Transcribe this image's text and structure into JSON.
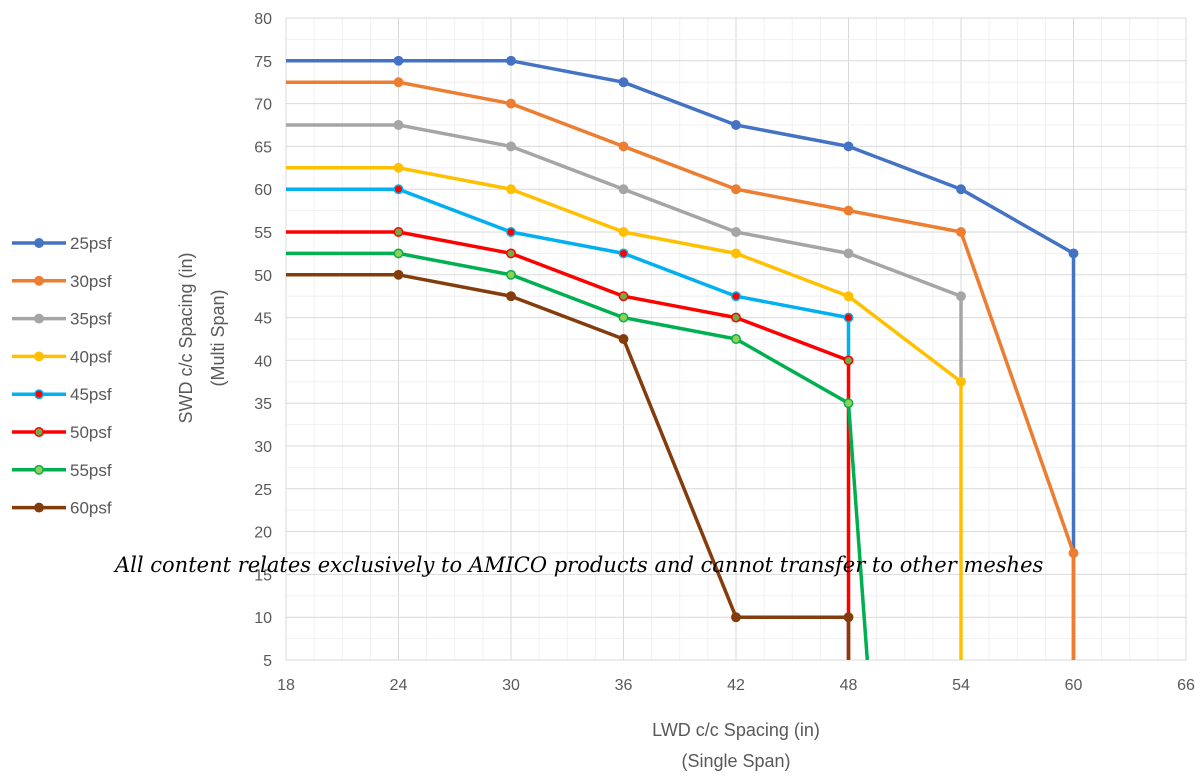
{
  "chart_data": {
    "type": "line",
    "title": "",
    "xlabel": [
      "LWD c/c Spacing (in)",
      "(Single Span)"
    ],
    "ylabel": [
      "SWD c/c Spacing (in)",
      "(Multi Span)"
    ],
    "xlim": [
      18,
      66
    ],
    "ylim": [
      5,
      80
    ],
    "xticks": [
      18,
      24,
      30,
      36,
      42,
      48,
      54,
      60,
      66
    ],
    "yticks": [
      5,
      10,
      15,
      20,
      25,
      30,
      35,
      40,
      45,
      50,
      55,
      60,
      65,
      70,
      75,
      80
    ],
    "grid": "major and minor",
    "legend_position": "left",
    "annotation": "All content relates exclusively to AMICO products and cannot transfer to other meshes",
    "series": [
      {
        "name": "25psf",
        "color": "#4472C4",
        "marker_fill": "#4472C4",
        "points": [
          [
            18,
            75
          ],
          [
            24,
            75
          ],
          [
            30,
            75
          ],
          [
            36,
            72.5
          ],
          [
            42,
            67.5
          ],
          [
            48,
            65
          ],
          [
            54,
            60
          ],
          [
            60,
            52.5
          ],
          [
            60,
            5
          ]
        ],
        "markers": [
          [
            24,
            75
          ],
          [
            30,
            75
          ],
          [
            36,
            72.5
          ],
          [
            42,
            67.5
          ],
          [
            48,
            65
          ],
          [
            54,
            60
          ],
          [
            60,
            52.5
          ]
        ]
      },
      {
        "name": "30psf",
        "color": "#ED7D31",
        "marker_fill": "#ED7D31",
        "points": [
          [
            18,
            72.5
          ],
          [
            24,
            72.5
          ],
          [
            30,
            70
          ],
          [
            36,
            65
          ],
          [
            42,
            60
          ],
          [
            48,
            57.5
          ],
          [
            54,
            55
          ],
          [
            60,
            17.5
          ],
          [
            60,
            5
          ]
        ],
        "markers": [
          [
            24,
            72.5
          ],
          [
            30,
            70
          ],
          [
            36,
            65
          ],
          [
            42,
            60
          ],
          [
            48,
            57.5
          ],
          [
            54,
            55
          ],
          [
            60,
            17.5
          ]
        ]
      },
      {
        "name": "35psf",
        "color": "#A5A5A5",
        "marker_fill": "#A5A5A5",
        "points": [
          [
            18,
            67.5
          ],
          [
            24,
            67.5
          ],
          [
            30,
            65
          ],
          [
            36,
            60
          ],
          [
            42,
            55
          ],
          [
            48,
            52.5
          ],
          [
            54,
            47.5
          ],
          [
            54,
            37.5
          ]
        ],
        "markers": [
          [
            24,
            67.5
          ],
          [
            30,
            65
          ],
          [
            36,
            60
          ],
          [
            42,
            55
          ],
          [
            48,
            52.5
          ],
          [
            54,
            47.5
          ]
        ]
      },
      {
        "name": "40psf",
        "color": "#FFC000",
        "marker_fill": "#FFC000",
        "points": [
          [
            18,
            62.5
          ],
          [
            24,
            62.5
          ],
          [
            30,
            60
          ],
          [
            36,
            55
          ],
          [
            42,
            52.5
          ],
          [
            48,
            47.5
          ],
          [
            54,
            37.5
          ],
          [
            54,
            5
          ]
        ],
        "markers": [
          [
            24,
            62.5
          ],
          [
            30,
            60
          ],
          [
            36,
            55
          ],
          [
            42,
            52.5
          ],
          [
            48,
            47.5
          ],
          [
            54,
            37.5
          ]
        ]
      },
      {
        "name": "45psf",
        "color": "#00B0F0",
        "marker_fill": "#FF0000",
        "points": [
          [
            18,
            60
          ],
          [
            24,
            60
          ],
          [
            30,
            55
          ],
          [
            36,
            52.5
          ],
          [
            42,
            47.5
          ],
          [
            48,
            45
          ],
          [
            48,
            40
          ]
        ],
        "markers": [
          [
            24,
            60
          ],
          [
            30,
            55
          ],
          [
            36,
            52.5
          ],
          [
            42,
            47.5
          ],
          [
            48,
            45
          ]
        ]
      },
      {
        "name": "50psf",
        "color": "#FF0000",
        "marker_fill": "#70AD47",
        "points": [
          [
            18,
            55
          ],
          [
            24,
            55
          ],
          [
            30,
            52.5
          ],
          [
            36,
            47.5
          ],
          [
            42,
            45
          ],
          [
            48,
            40
          ],
          [
            48,
            5
          ]
        ],
        "markers": [
          [
            24,
            55
          ],
          [
            30,
            52.5
          ],
          [
            36,
            47.5
          ],
          [
            42,
            45
          ],
          [
            48,
            40
          ]
        ]
      },
      {
        "name": "55psf",
        "color": "#00B050",
        "marker_fill": "#92D050",
        "points": [
          [
            18,
            52.5
          ],
          [
            24,
            52.5
          ],
          [
            30,
            50
          ],
          [
            36,
            45
          ],
          [
            42,
            42.5
          ],
          [
            48,
            35
          ],
          [
            49,
            5
          ]
        ],
        "markers": [
          [
            24,
            52.5
          ],
          [
            30,
            50
          ],
          [
            36,
            45
          ],
          [
            42,
            42.5
          ],
          [
            48,
            35
          ]
        ]
      },
      {
        "name": "60psf",
        "color": "#843C0C",
        "marker_fill": "#843C0C",
        "points": [
          [
            18,
            50
          ],
          [
            24,
            50
          ],
          [
            30,
            47.5
          ],
          [
            36,
            42.5
          ],
          [
            42,
            10
          ],
          [
            48,
            10
          ],
          [
            48,
            5
          ]
        ],
        "markers": [
          [
            24,
            50
          ],
          [
            30,
            47.5
          ],
          [
            36,
            42.5
          ],
          [
            42,
            10
          ],
          [
            48,
            10
          ]
        ]
      }
    ]
  }
}
